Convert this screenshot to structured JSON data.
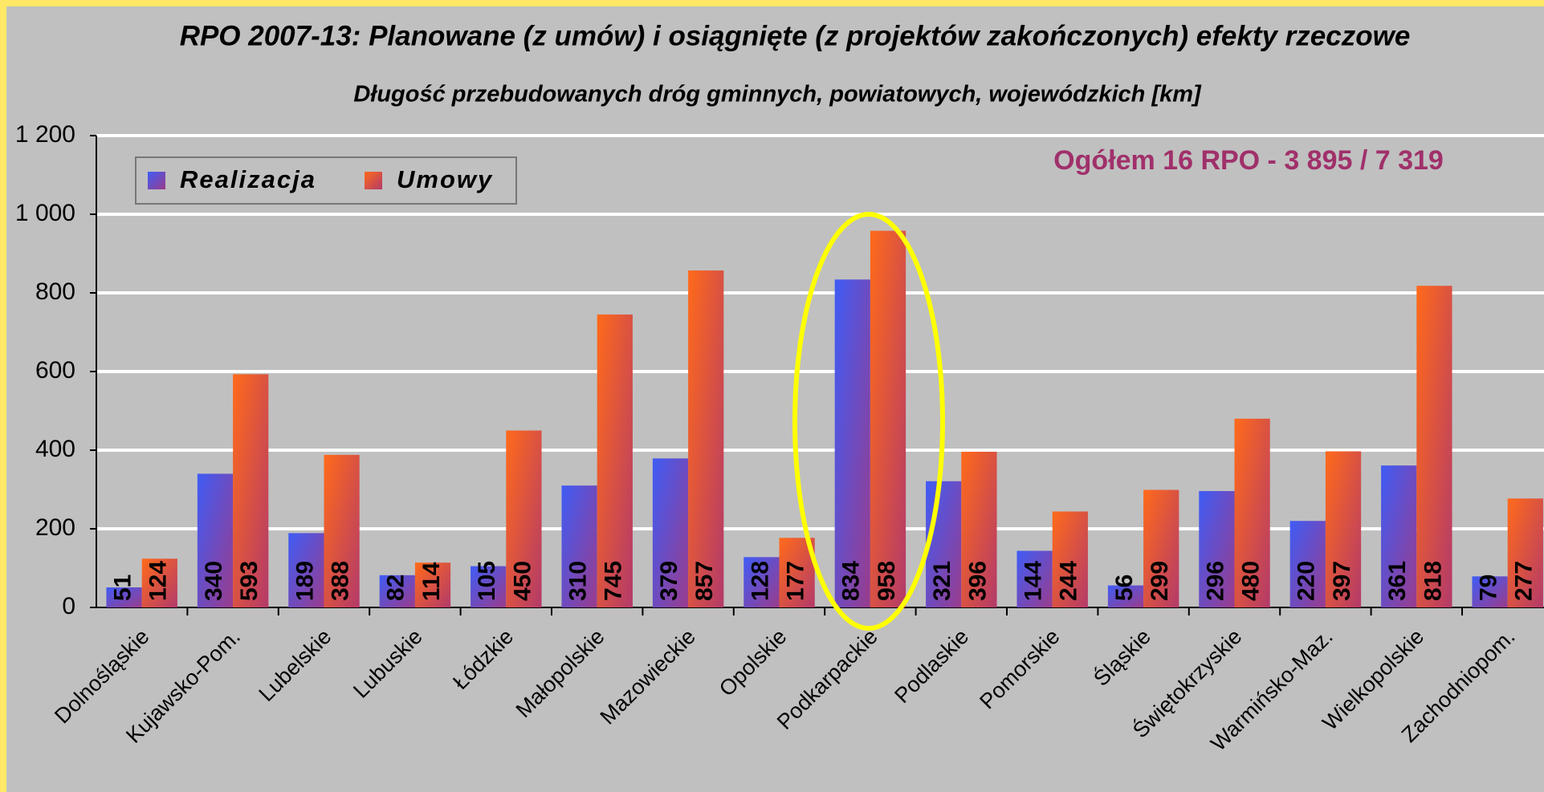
{
  "chart_data": {
    "type": "bar",
    "title": "RPO 2007-13: Planowane (z umów) i osiągnięte (z projektów zakończonych) efekty rzeczowe",
    "subtitle": "Długość przebudowanych dróg gminnych, powiatowych, wojewódzkich [km]",
    "annotation": "Ogółem 16 RPO - 3 895 / 7 319",
    "categories": [
      "Dolnośląskie",
      "Kujawsko-Pom.",
      "Lubelskie",
      "Lubuskie",
      "Łódzkie",
      "Małopolskie",
      "Mazowieckie",
      "Opolskie",
      "Podkarpackie",
      "Podlaskie",
      "Pomorskie",
      "Śląskie",
      "Świętokrzyskie",
      "Warmińsko-Maz.",
      "Wielkopolskie",
      "Zachodniopom."
    ],
    "series": [
      {
        "name": "Realizacja",
        "color": "#3f5cf5",
        "values": [
          51,
          340,
          189,
          82,
          105,
          310,
          379,
          128,
          834,
          321,
          144,
          56,
          296,
          220,
          361,
          79
        ]
      },
      {
        "name": "Umowy",
        "color": "#ff6a1a",
        "values": [
          124,
          593,
          388,
          114,
          450,
          745,
          857,
          177,
          958,
          396,
          244,
          299,
          480,
          397,
          818,
          277
        ]
      }
    ],
    "ylim": [
      0,
      1200
    ],
    "yticks": [
      0,
      200,
      400,
      600,
      800,
      {
        "value": 1000,
        "label": "1 000"
      },
      {
        "value": 1200,
        "label": "1 200"
      }
    ],
    "grid": true,
    "legend": "top-left"
  }
}
